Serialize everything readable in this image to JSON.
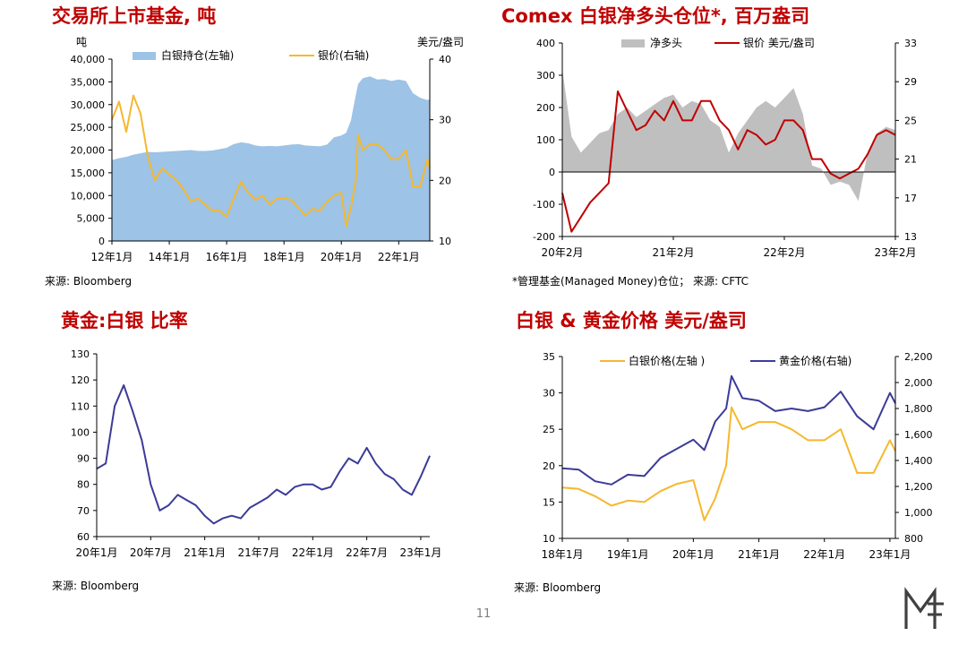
{
  "page": {
    "number": "11"
  },
  "brand": {
    "logo_name": "mf-logo"
  },
  "panels": [
    {
      "title": "交易所上市基金, 吨",
      "source": "来源: Bloomberg",
      "chart_data": {
        "type": "area",
        "title": "交易所上市基金, 吨",
        "left_axis": {
          "unit": "吨",
          "ylim": [
            0,
            40000
          ],
          "ticks": [
            "0",
            "5,000",
            "10,000",
            "15,000",
            "20,000",
            "25,000",
            "30,000",
            "35,000",
            "40,000"
          ]
        },
        "right_axis": {
          "unit": "美元/盎司",
          "ylim": [
            10,
            40
          ],
          "ticks": [
            "10",
            "20",
            "30",
            "40"
          ]
        },
        "x_labels": [
          "12年1月",
          "14年1月",
          "16年1月",
          "18年1月",
          "20年1月",
          "22年1月"
        ],
        "x_range": [
          "2012-01",
          "2023-02"
        ],
        "x": [
          "2012-01",
          "2012-04",
          "2012-07",
          "2012-10",
          "2013-01",
          "2013-04",
          "2013-07",
          "2013-10",
          "2014-01",
          "2014-04",
          "2014-07",
          "2014-10",
          "2015-01",
          "2015-04",
          "2015-07",
          "2015-10",
          "2016-01",
          "2016-04",
          "2016-07",
          "2016-10",
          "2017-01",
          "2017-04",
          "2017-07",
          "2017-10",
          "2018-01",
          "2018-04",
          "2018-07",
          "2018-10",
          "2019-01",
          "2019-04",
          "2019-07",
          "2019-10",
          "2020-01",
          "2020-03",
          "2020-05",
          "2020-07",
          "2020-08",
          "2020-10",
          "2021-01",
          "2021-04",
          "2021-07",
          "2021-10",
          "2022-01",
          "2022-04",
          "2022-07",
          "2022-10",
          "2023-01",
          "2023-02"
        ],
        "legend": [
          "白银持仓(左轴)",
          "银价(右轴)"
        ],
        "legend_position": "top",
        "colors": {
          "holdings": "#9dc3e6",
          "price": "#f5b82e"
        },
        "series": [
          {
            "name": "白银持仓(左轴)",
            "axis": "left",
            "type": "area",
            "values": [
              17800,
              18200,
              18500,
              19000,
              19300,
              19600,
              19500,
              19600,
              19700,
              19800,
              19900,
              20000,
              19800,
              19800,
              19900,
              20200,
              20500,
              21300,
              21700,
              21500,
              21000,
              20800,
              20900,
              20800,
              21000,
              21200,
              21300,
              21000,
              20900,
              20800,
              21200,
              22800,
              23200,
              23800,
              26500,
              32000,
              34500,
              35800,
              36200,
              35500,
              35600,
              35200,
              35500,
              35200,
              32500,
              31500,
              31000,
              31200
            ]
          },
          {
            "name": "银价(右轴)",
            "axis": "right",
            "type": "line",
            "values": [
              30,
              33,
              28,
              34,
              31,
              24,
              20,
              22,
              21,
              20,
              18.5,
              16.5,
              17,
              16,
              15,
              15,
              14,
              17,
              19.8,
              18,
              16.8,
              17.5,
              16,
              17,
              17,
              16.8,
              15.5,
              14.2,
              15.3,
              15,
              16.5,
              17.5,
              18,
              12.5,
              15.5,
              20,
              27.5,
              25,
              26,
              26,
              25,
              23.5,
              23.5,
              25,
              19,
              19,
              23.5,
              22
            ]
          }
        ]
      }
    },
    {
      "title": "Comex 白银净多头仓位*, 百万盎司",
      "source": "*管理基金(Managed Money)仓位；  来源: CFTC",
      "chart_data": {
        "type": "area",
        "title": "Comex 白银净多头仓位*, 百万盎司",
        "left_axis": {
          "ylim": [
            -200,
            400
          ],
          "ticks": [
            "-200",
            "-100",
            "0",
            "100",
            "200",
            "300",
            "400"
          ]
        },
        "right_axis": {
          "ylim": [
            13,
            33
          ],
          "ticks": [
            "13",
            "17",
            "21",
            "25",
            "29",
            "33"
          ]
        },
        "x_labels": [
          "20年2月",
          "21年2月",
          "22年2月",
          "23年2月"
        ],
        "x_range": [
          "2020-02",
          "2023-02"
        ],
        "x": [
          "2020-02",
          "2020-03",
          "2020-04",
          "2020-05",
          "2020-06",
          "2020-07",
          "2020-08",
          "2020-09",
          "2020-10",
          "2020-11",
          "2020-12",
          "2021-01",
          "2021-02",
          "2021-03",
          "2021-04",
          "2021-05",
          "2021-06",
          "2021-07",
          "2021-08",
          "2021-09",
          "2021-10",
          "2021-11",
          "2021-12",
          "2022-01",
          "2022-02",
          "2022-03",
          "2022-04",
          "2022-05",
          "2022-06",
          "2022-07",
          "2022-08",
          "2022-09",
          "2022-10",
          "2022-11",
          "2022-12",
          "2023-01",
          "2023-02"
        ],
        "legend": [
          "净多头",
          "银价 美元/盎司"
        ],
        "legend_position": "top",
        "colors": {
          "net_long": "#bfbfbf",
          "price": "#c00000"
        },
        "series": [
          {
            "name": "净多头",
            "axis": "left",
            "type": "area",
            "values": [
              320,
              110,
              60,
              90,
              120,
              130,
              180,
              200,
              170,
              190,
              210,
              230,
              240,
              200,
              220,
              210,
              160,
              140,
              60,
              120,
              160,
              200,
              220,
              200,
              230,
              260,
              180,
              20,
              10,
              -40,
              -30,
              -40,
              -90,
              60,
              120,
              140,
              130
            ]
          },
          {
            "name": "银价 美元/盎司",
            "axis": "right",
            "type": "line",
            "values": [
              17.5,
              13.5,
              15,
              16.5,
              17.5,
              18.5,
              28,
              26,
              24,
              24.5,
              26,
              25,
              27,
              25,
              25,
              27,
              27,
              25,
              24,
              22,
              24,
              23.5,
              22.5,
              23,
              25,
              25,
              24,
              21,
              21,
              19.5,
              19,
              19.5,
              20,
              21.5,
              23.5,
              24,
              23.5
            ]
          }
        ]
      }
    },
    {
      "title": "黄金:白银 比率",
      "source": "来源: Bloomberg",
      "chart_data": {
        "type": "line",
        "title": "黄金:白银 比率",
        "ylim": [
          60,
          130
        ],
        "y_ticks": [
          "60",
          "70",
          "80",
          "90",
          "100",
          "110",
          "120",
          "130"
        ],
        "x_labels": [
          "20年1月",
          "20年7月",
          "21年1月",
          "21年7月",
          "22年1月",
          "22年7月",
          "23年1月"
        ],
        "x_range": [
          "2020-01",
          "2023-02"
        ],
        "x": [
          "2020-01",
          "2020-02",
          "2020-03",
          "2020-04",
          "2020-05",
          "2020-06",
          "2020-07",
          "2020-08",
          "2020-09",
          "2020-10",
          "2020-11",
          "2020-12",
          "2021-01",
          "2021-02",
          "2021-03",
          "2021-04",
          "2021-05",
          "2021-06",
          "2021-07",
          "2021-08",
          "2021-09",
          "2021-10",
          "2021-11",
          "2021-12",
          "2022-01",
          "2022-02",
          "2022-03",
          "2022-04",
          "2022-05",
          "2022-06",
          "2022-07",
          "2022-08",
          "2022-09",
          "2022-10",
          "2022-11",
          "2022-12",
          "2023-01",
          "2023-02"
        ],
        "colors": {
          "ratio": "#3b3b98"
        },
        "series": [
          {
            "name": "",
            "values": [
              86,
              88,
              110,
              118,
              108,
              97,
              80,
              70,
              72,
              76,
              74,
              72,
              68,
              65,
              67,
              68,
              67,
              71,
              73,
              75,
              78,
              76,
              79,
              80,
              80,
              78,
              79,
              85,
              90,
              88,
              94,
              88,
              84,
              82,
              78,
              76,
              83,
              91
            ]
          }
        ]
      }
    },
    {
      "title": "白银 & 黄金价格 美元/盎司",
      "source": "来源: Bloomberg",
      "chart_data": {
        "type": "line",
        "title": "白银 & 黄金价格 美元/盎司",
        "left_axis": {
          "ylim": [
            10,
            35
          ],
          "ticks": [
            "10",
            "15",
            "20",
            "25",
            "30",
            "35"
          ]
        },
        "right_axis": {
          "ylim": [
            800,
            2200
          ],
          "ticks": [
            "800",
            "1,000",
            "1,200",
            "1,400",
            "1,600",
            "1,800",
            "2,000",
            "2,200"
          ]
        },
        "x_labels": [
          "18年1月",
          "19年1月",
          "20年1月",
          "21年1月",
          "22年1月",
          "23年1月"
        ],
        "x_range": [
          "2018-01",
          "2023-02"
        ],
        "x": [
          "2018-01",
          "2018-04",
          "2018-07",
          "2018-10",
          "2019-01",
          "2019-04",
          "2019-07",
          "2019-10",
          "2020-01",
          "2020-03",
          "2020-05",
          "2020-07",
          "2020-08",
          "2020-10",
          "2021-01",
          "2021-04",
          "2021-07",
          "2021-10",
          "2022-01",
          "2022-04",
          "2022-07",
          "2022-10",
          "2023-01",
          "2023-02"
        ],
        "legend": [
          "白银价格(左轴 )",
          "黄金价格(右轴)"
        ],
        "legend_position": "top",
        "colors": {
          "silver": "#f5b82e",
          "gold": "#3b3b98"
        },
        "series": [
          {
            "name": "白银价格(左轴 )",
            "axis": "left",
            "values": [
              17,
              16.8,
              15.8,
              14.5,
              15.2,
              15,
              16.5,
              17.5,
              18,
              12.5,
              15.5,
              20,
              28,
              25,
              26,
              26,
              25,
              23.5,
              23.5,
              25,
              19,
              19,
              23.5,
              22
            ]
          },
          {
            "name": "黄金价格(右轴)",
            "axis": "right",
            "values": [
              1340,
              1330,
              1240,
              1215,
              1290,
              1280,
              1420,
              1490,
              1560,
              1480,
              1700,
              1800,
              2050,
              1880,
              1860,
              1780,
              1800,
              1780,
              1810,
              1930,
              1740,
              1640,
              1920,
              1840
            ]
          }
        ]
      }
    }
  ]
}
